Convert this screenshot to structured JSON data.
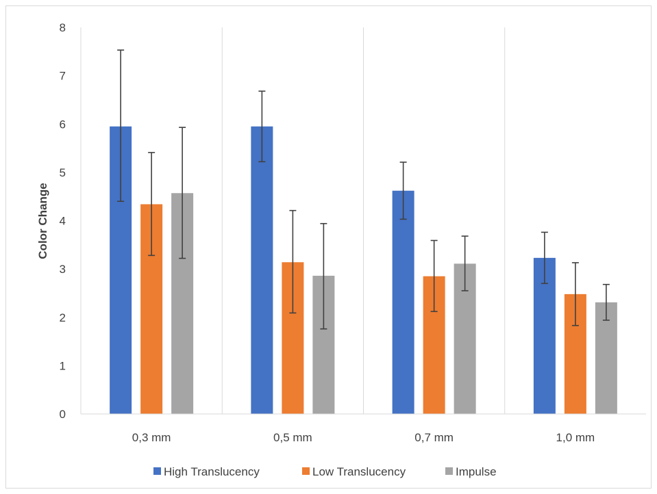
{
  "chart_data": {
    "type": "bar",
    "title": "",
    "xlabel": "",
    "ylabel": "Color Change",
    "ylim": [
      0,
      8
    ],
    "yticks": [
      0,
      1,
      2,
      3,
      4,
      5,
      6,
      7,
      8
    ],
    "categories": [
      "0,3 mm",
      "0,5 mm",
      "0,7 mm",
      "1,0 mm"
    ],
    "series": [
      {
        "name": "High Translucency",
        "color": "#4472C4",
        "values": [
          5.95,
          5.95,
          4.62,
          3.23
        ],
        "error_low": [
          4.4,
          5.22,
          4.03,
          2.7
        ],
        "error_high": [
          7.53,
          6.68,
          5.21,
          3.76
        ]
      },
      {
        "name": "Low Translucency",
        "color": "#ED7D31",
        "values": [
          4.34,
          3.14,
          2.85,
          2.48
        ],
        "error_low": [
          3.28,
          2.09,
          2.12,
          1.83
        ],
        "error_high": [
          5.41,
          4.21,
          3.59,
          3.13
        ]
      },
      {
        "name": "Impulse",
        "color": "#A5A5A5",
        "values": [
          4.57,
          2.86,
          3.11,
          2.31
        ],
        "error_low": [
          3.22,
          1.76,
          2.55,
          1.94
        ],
        "error_high": [
          5.93,
          3.94,
          3.68,
          2.68
        ]
      }
    ],
    "grid": "vertical separators between categories",
    "legend": "bottom"
  }
}
